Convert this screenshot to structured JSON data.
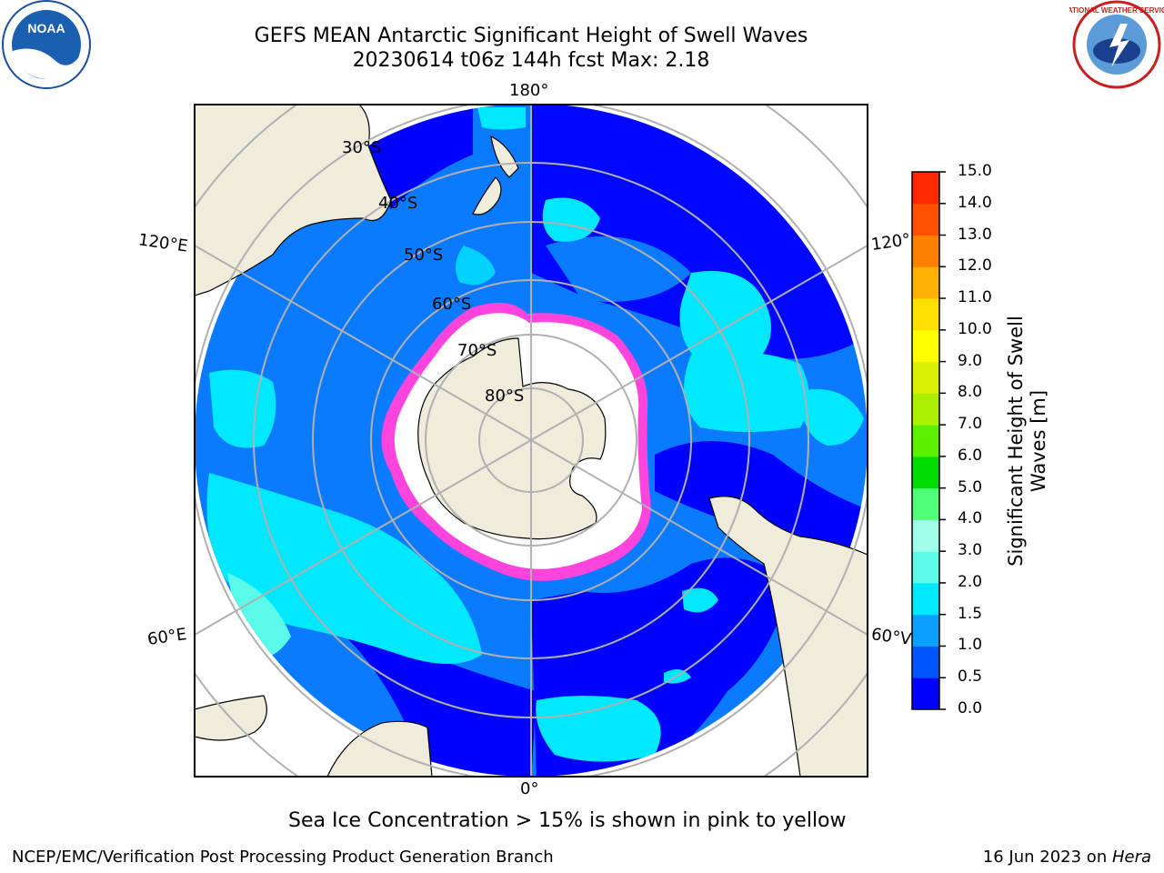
{
  "title_line1": "GEFS MEAN Antarctic Significant Height of Swell Waves",
  "title_line2": "20230614 t06z 144h fcst   Max: 2.18",
  "lon_labels": {
    "top": "180°",
    "bottom": "0°",
    "upper_left": "120°E",
    "upper_right": "120°",
    "lower_left": "60°E",
    "lower_right": "60°V"
  },
  "lat_labels": [
    "30°S",
    "40°S",
    "50°S",
    "60°S",
    "70°S",
    "80°S"
  ],
  "colorbar": {
    "label": "Significant Height of Swell Waves [m]",
    "ticks": [
      "0.0",
      "0.5",
      "1.0",
      "1.5",
      "2.0",
      "3.0",
      "4.0",
      "5.0",
      "6.0",
      "7.0",
      "8.0",
      "9.0",
      "10.0",
      "11.0",
      "12.0",
      "13.0",
      "14.0",
      "15.0"
    ],
    "colors": [
      "#0000ff",
      "#0055ff",
      "#0aa0ff",
      "#00e8ff",
      "#59fbe8",
      "#a0ffe8",
      "#50ff78",
      "#00dc00",
      "#5af000",
      "#aaf000",
      "#d8f000",
      "#ffff00",
      "#ffe000",
      "#ffb000",
      "#ff8000",
      "#ff5000",
      "#ff2800",
      "#ff0000"
    ]
  },
  "footnote": "Sea Ice Concentration > 15% is shown in pink to yellow",
  "credit": "NCEP/EMC/Verification Post Processing Product Generation Branch",
  "date_prefix": "16 Jun 2023 on ",
  "date_machine": "Hera",
  "logos": {
    "left": "NOAA",
    "right": "NATIONAL WEATHER SERVICE"
  },
  "colors": {
    "land": "#efecdc",
    "ice": "#ffffff",
    "ice_edge": "#ff44dd",
    "graticule": "#b0b0b0",
    "frame": "#000000"
  }
}
